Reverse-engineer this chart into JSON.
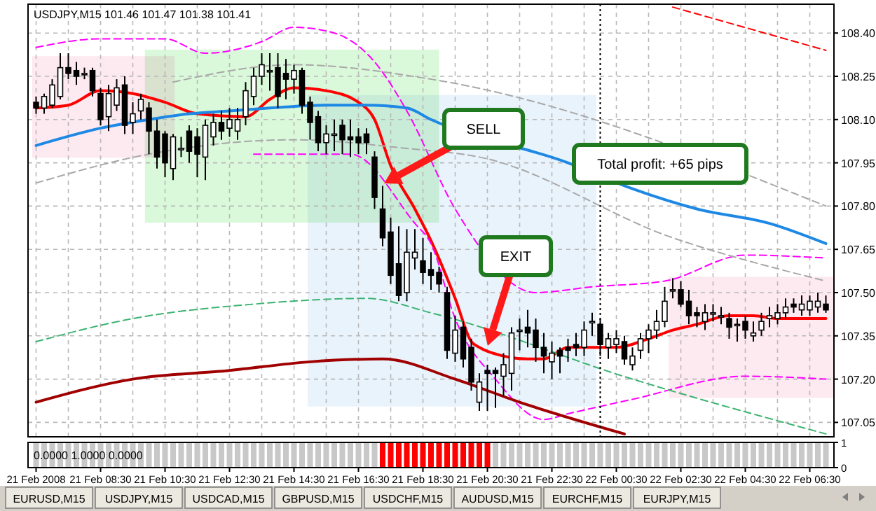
{
  "chart_data": [
    {
      "type": "candlestick",
      "title": "USDJPY,M15 101.46 101.47 101.38 101.41",
      "x": [
        "2008-02-21T06:30",
        "2008-02-21T06:45",
        "2008-02-21T07:00",
        "2008-02-21T07:15",
        "2008-02-21T07:30",
        "2008-02-21T07:45",
        "2008-02-21T08:00",
        "2008-02-21T08:15",
        "2008-02-21T08:30",
        "2008-02-21T08:45",
        "2008-02-21T09:00",
        "2008-02-21T09:15",
        "2008-02-21T09:30",
        "2008-02-21T09:45",
        "2008-02-21T10:00",
        "2008-02-21T10:15",
        "2008-02-21T10:30",
        "2008-02-21T10:45",
        "2008-02-21T11:00",
        "2008-02-21T11:15",
        "2008-02-21T11:30",
        "2008-02-21T11:45",
        "2008-02-21T12:00",
        "2008-02-21T12:15",
        "2008-02-21T12:30",
        "2008-02-21T12:45",
        "2008-02-21T13:00",
        "2008-02-21T13:15",
        "2008-02-21T13:30",
        "2008-02-21T13:45",
        "2008-02-21T14:00",
        "2008-02-21T14:15",
        "2008-02-21T14:30",
        "2008-02-21T14:45",
        "2008-02-21T15:00",
        "2008-02-21T15:15",
        "2008-02-21T15:30",
        "2008-02-21T15:45",
        "2008-02-21T16:00",
        "2008-02-21T16:15",
        "2008-02-21T16:30",
        "2008-02-21T16:45",
        "2008-02-21T17:00",
        "2008-02-21T17:15",
        "2008-02-21T17:30",
        "2008-02-21T17:45",
        "2008-02-21T18:00",
        "2008-02-21T18:15",
        "2008-02-21T18:30",
        "2008-02-21T18:45",
        "2008-02-21T19:00",
        "2008-02-21T19:15",
        "2008-02-21T19:30",
        "2008-02-21T19:45",
        "2008-02-21T20:00",
        "2008-02-21T20:15",
        "2008-02-21T20:30",
        "2008-02-21T20:45",
        "2008-02-21T21:00",
        "2008-02-21T21:15",
        "2008-02-21T21:30",
        "2008-02-21T21:45",
        "2008-02-21T22:00",
        "2008-02-21T22:15",
        "2008-02-21T22:30",
        "2008-02-21T22:45",
        "2008-02-21T23:00",
        "2008-02-21T23:15",
        "2008-02-21T23:30",
        "2008-02-21T23:45",
        "2008-02-22T00:00",
        "2008-02-22T00:15",
        "2008-02-22T00:30",
        "2008-02-22T00:45",
        "2008-02-22T01:00",
        "2008-02-22T01:15",
        "2008-02-22T01:30",
        "2008-02-22T01:45",
        "2008-02-22T02:00",
        "2008-02-22T02:15",
        "2008-02-22T02:30",
        "2008-02-22T02:45",
        "2008-02-22T03:00",
        "2008-02-22T03:15",
        "2008-02-22T03:30",
        "2008-02-22T03:45",
        "2008-02-22T04:00",
        "2008-02-22T04:15",
        "2008-02-22T04:30",
        "2008-02-22T04:45",
        "2008-02-22T05:00",
        "2008-02-22T05:15",
        "2008-02-22T05:30",
        "2008-02-22T05:45",
        "2008-02-22T06:00",
        "2008-02-22T06:15",
        "2008-02-22T06:30",
        "2008-02-22T06:45",
        "2008-02-22T07:00"
      ],
      "ohlc": [
        [
          108.16,
          108.18,
          108.12,
          108.14
        ],
        [
          108.14,
          108.19,
          108.12,
          108.18
        ],
        [
          108.15,
          108.24,
          108.14,
          108.22
        ],
        [
          108.18,
          108.33,
          108.17,
          108.28
        ],
        [
          108.28,
          108.33,
          108.24,
          108.26
        ],
        [
          108.27,
          108.3,
          108.22,
          108.25
        ],
        [
          108.26,
          108.28,
          108.24,
          108.26
        ],
        [
          108.27,
          108.28,
          108.18,
          108.2
        ],
        [
          108.19,
          108.21,
          108.08,
          108.1
        ],
        [
          108.11,
          108.22,
          108.06,
          108.19
        ],
        [
          108.15,
          108.24,
          108.13,
          108.21
        ],
        [
          108.22,
          108.25,
          108.05,
          108.08
        ],
        [
          108.09,
          108.16,
          108.05,
          108.12
        ],
        [
          108.13,
          108.19,
          108.1,
          108.17
        ],
        [
          108.14,
          108.16,
          107.98,
          108.06
        ],
        [
          108.06,
          108.1,
          107.93,
          107.97
        ],
        [
          108.05,
          108.06,
          107.9,
          107.95
        ],
        [
          107.93,
          108.05,
          107.89,
          108.04
        ],
        [
          108.0,
          108.04,
          107.97,
          108.0
        ],
        [
          108.06,
          108.08,
          107.95,
          107.99
        ],
        [
          108.04,
          108.07,
          107.9,
          107.98
        ],
        [
          107.97,
          108.1,
          107.89,
          108.08
        ],
        [
          108.04,
          108.12,
          108.01,
          108.09
        ],
        [
          108.09,
          108.13,
          108.03,
          108.06
        ],
        [
          108.07,
          108.14,
          108.04,
          108.1
        ],
        [
          108.06,
          108.14,
          108.03,
          108.1
        ],
        [
          108.11,
          108.23,
          108.08,
          108.2
        ],
        [
          108.18,
          108.28,
          108.15,
          108.25
        ],
        [
          108.25,
          108.33,
          108.22,
          108.29
        ],
        [
          108.27,
          108.33,
          108.2,
          108.27
        ],
        [
          108.28,
          108.33,
          108.14,
          108.18
        ],
        [
          108.26,
          108.31,
          108.17,
          108.24
        ],
        [
          108.24,
          108.29,
          108.19,
          108.27
        ],
        [
          108.27,
          108.28,
          108.12,
          108.15
        ],
        [
          108.16,
          108.18,
          108.03,
          108.09
        ],
        [
          108.11,
          108.13,
          107.99,
          108.02
        ],
        [
          108.02,
          108.08,
          107.98,
          108.05
        ],
        [
          108.05,
          108.1,
          107.99,
          108.05
        ],
        [
          108.08,
          108.1,
          107.98,
          108.03
        ],
        [
          108.04,
          108.1,
          107.97,
          108.03
        ],
        [
          108.04,
          108.07,
          107.98,
          108.02
        ],
        [
          108.05,
          108.07,
          107.98,
          108.02
        ],
        [
          107.97,
          107.99,
          107.79,
          107.83
        ],
        [
          107.79,
          107.87,
          107.66,
          107.69
        ],
        [
          107.71,
          107.76,
          107.53,
          107.56
        ],
        [
          107.6,
          107.73,
          107.47,
          107.49
        ],
        [
          107.5,
          107.72,
          107.47,
          107.64
        ],
        [
          107.62,
          107.72,
          107.58,
          107.64
        ],
        [
          107.61,
          107.69,
          107.53,
          107.57
        ],
        [
          107.58,
          107.64,
          107.51,
          107.56
        ],
        [
          107.57,
          107.59,
          107.5,
          107.53
        ],
        [
          107.5,
          107.52,
          107.27,
          107.3
        ],
        [
          107.29,
          107.42,
          107.26,
          107.37
        ],
        [
          107.38,
          107.4,
          107.24,
          107.27
        ],
        [
          107.31,
          107.34,
          107.16,
          107.19
        ],
        [
          107.12,
          107.22,
          107.09,
          107.19
        ],
        [
          107.23,
          107.25,
          107.09,
          107.22
        ],
        [
          107.23,
          107.24,
          107.1,
          107.22
        ],
        [
          107.21,
          107.29,
          107.14,
          107.25
        ],
        [
          107.22,
          107.38,
          107.16,
          107.36
        ],
        [
          107.37,
          107.41,
          107.3,
          107.37
        ],
        [
          107.38,
          107.44,
          107.31,
          107.36
        ],
        [
          107.37,
          107.41,
          107.26,
          107.31
        ],
        [
          107.31,
          107.36,
          107.22,
          107.28
        ],
        [
          107.26,
          107.33,
          107.2,
          107.29
        ],
        [
          107.3,
          107.31,
          107.22,
          107.28
        ],
        [
          107.31,
          107.34,
          107.26,
          107.3
        ],
        [
          107.32,
          107.36,
          107.28,
          107.31
        ],
        [
          107.31,
          107.4,
          107.28,
          107.37
        ],
        [
          107.4,
          107.43,
          107.35,
          107.4
        ],
        [
          107.39,
          107.41,
          107.28,
          107.32
        ],
        [
          107.31,
          107.36,
          107.27,
          107.34
        ],
        [
          107.32,
          107.37,
          107.29,
          107.34
        ],
        [
          107.33,
          107.35,
          107.25,
          107.27
        ],
        [
          107.25,
          107.31,
          107.23,
          107.28
        ],
        [
          107.3,
          107.36,
          107.27,
          107.34
        ],
        [
          107.34,
          107.39,
          107.29,
          107.37
        ],
        [
          107.37,
          107.44,
          107.34,
          107.4
        ],
        [
          107.4,
          107.52,
          107.38,
          107.47
        ],
        [
          107.51,
          107.55,
          107.48,
          107.51
        ],
        [
          107.51,
          107.54,
          107.45,
          107.46
        ],
        [
          107.47,
          107.51,
          107.39,
          107.42
        ],
        [
          107.43,
          107.45,
          107.38,
          107.42
        ],
        [
          107.4,
          107.46,
          107.37,
          107.43
        ],
        [
          107.43,
          107.46,
          107.4,
          107.43
        ],
        [
          107.42,
          107.45,
          107.39,
          107.42
        ],
        [
          107.41,
          107.43,
          107.34,
          107.38
        ],
        [
          107.39,
          107.41,
          107.33,
          107.39
        ],
        [
          107.4,
          107.42,
          107.34,
          107.37
        ],
        [
          107.35,
          107.4,
          107.33,
          107.36
        ],
        [
          107.37,
          107.43,
          107.35,
          107.4
        ],
        [
          107.41,
          107.45,
          107.38,
          107.42
        ],
        [
          107.41,
          107.46,
          107.39,
          107.43
        ],
        [
          107.43,
          107.48,
          107.41,
          107.45
        ],
        [
          107.46,
          107.48,
          107.43,
          107.45
        ],
        [
          107.44,
          107.49,
          107.42,
          107.46
        ],
        [
          107.44,
          107.49,
          107.42,
          107.47
        ],
        [
          107.45,
          107.5,
          107.43,
          107.47
        ],
        [
          107.46,
          107.49,
          107.43,
          107.44
        ]
      ],
      "series": [
        {
          "type": "line",
          "color": "#ff0000",
          "line_style": "solid",
          "x": [
            "2008-02-21T06:30",
            "2008-02-21T07:30",
            "2008-02-21T08:30",
            "2008-02-21T09:30",
            "2008-02-21T10:30",
            "2008-02-21T11:30",
            "2008-02-21T13:00",
            "2008-02-21T13:45",
            "2008-02-21T14:30",
            "2008-02-21T15:30",
            "2008-02-21T16:30",
            "2008-02-21T17:00",
            "2008-02-21T17:30",
            "2008-02-21T18:15",
            "2008-02-21T18:45",
            "2008-02-21T19:30",
            "2008-02-21T20:00",
            "2008-02-21T20:15",
            "2008-02-21T21:00",
            "2008-02-21T21:45",
            "2008-02-21T22:15",
            "2008-02-21T23:00",
            "2008-02-21T23:45",
            "2008-02-22T00:30",
            "2008-02-22T01:30",
            "2008-02-22T02:15",
            "2008-02-22T03:00",
            "2008-02-22T04:00",
            "2008-02-22T04:45",
            "2008-02-22T05:30",
            "2008-02-22T07:00"
          ],
          "values": [
            108.14,
            108.15,
            108.2,
            108.19,
            108.16,
            108.12,
            108.11,
            108.17,
            108.21,
            108.2,
            108.16,
            108.1,
            107.94,
            107.79,
            107.68,
            107.48,
            107.33,
            107.31,
            107.28,
            107.27,
            107.27,
            107.31,
            107.31,
            107.31,
            107.34,
            107.37,
            107.39,
            107.42,
            107.42,
            107.41,
            107.41
          ]
        },
        {
          "type": "line",
          "color": "#1e88e5",
          "line_style": "solid",
          "x": [
            "2008-02-21T06:30",
            "2008-02-21T08:30",
            "2008-02-21T10:00",
            "2008-02-21T11:15",
            "2008-02-21T12:30",
            "2008-02-21T13:45",
            "2008-02-21T15:30",
            "2008-02-21T16:45",
            "2008-02-21T18:00",
            "2008-02-21T18:45",
            "2008-02-21T23:00",
            "2008-02-22T01:00",
            "2008-02-22T03:00",
            "2008-02-22T05:15",
            "2008-02-22T07:00"
          ],
          "values": [
            108.01,
            108.07,
            108.1,
            108.12,
            108.13,
            108.14,
            108.15,
            108.15,
            108.14,
            108.1,
            107.95,
            107.86,
            107.79,
            107.74,
            107.67
          ]
        },
        {
          "type": "line",
          "color": "#ff00ff",
          "line_style": "dashed",
          "x": [
            "2008-02-21T06:30",
            "2008-02-21T08:30",
            "2008-02-21T10:30",
            "2008-02-21T11:45",
            "2008-02-21T13:30",
            "2008-02-21T14:30",
            "2008-02-21T15:45",
            "2008-02-21T17:00",
            "2008-02-21T18:00",
            "2008-02-21T19:30",
            "2008-02-21T22:00",
            "2008-02-21T23:45",
            "2008-02-22T02:00",
            "2008-02-22T04:30",
            "2008-02-22T07:00"
          ],
          "values": [
            108.35,
            108.38,
            108.38,
            108.33,
            108.37,
            108.42,
            108.4,
            108.3,
            108.13,
            107.79,
            107.5,
            107.52,
            107.54,
            107.63,
            107.62
          ]
        },
        {
          "type": "line",
          "color": "#ff00ff",
          "line_style": "dashed",
          "x": [
            "2008-02-21T13:15",
            "2008-02-21T15:00",
            "2008-02-21T16:15",
            "2008-02-21T18:15",
            "2008-02-21T18:45",
            "2008-02-21T19:30",
            "2008-02-21T20:45",
            "2008-02-21T22:15",
            "2008-02-21T23:00",
            "2008-02-22T01:00",
            "2008-02-22T04:30",
            "2008-02-22T07:00"
          ],
          "values": [
            107.98,
            107.98,
            107.98,
            107.74,
            107.67,
            107.41,
            107.2,
            107.06,
            107.08,
            107.13,
            107.21,
            107.2
          ]
        },
        {
          "type": "line",
          "color": "#a8a8a8",
          "line_style": "dashed",
          "x": [
            "2008-02-21T10:45",
            "2008-02-21T14:30",
            "2008-02-21T18:45",
            "2008-02-22T07:00"
          ],
          "values": [
            108.23,
            108.29,
            108.24,
            107.8
          ]
        },
        {
          "type": "line",
          "color": "#a8a8a8",
          "line_style": "dashed",
          "x": [
            "2008-02-21T06:30",
            "2008-02-21T10:00",
            "2008-02-21T14:30",
            "2008-02-21T18:00",
            "2008-02-21T20:15",
            "2008-02-22T02:15",
            "2008-02-22T07:00"
          ],
          "values": [
            107.88,
            107.98,
            108.03,
            108.0,
            107.97,
            107.69,
            107.54
          ]
        },
        {
          "type": "line",
          "color": "#3cb371",
          "line_style": "dashed",
          "x": [
            "2008-02-21T06:30",
            "2008-02-21T09:30",
            "2008-02-21T13:15",
            "2008-02-21T16:45",
            "2008-02-21T18:45",
            "2008-02-22T01:00",
            "2008-02-22T07:00"
          ],
          "values": [
            107.33,
            107.41,
            107.46,
            107.48,
            107.43,
            107.2,
            107.01
          ]
        },
        {
          "type": "line",
          "color": "#a00000",
          "line_style": "solid",
          "x": [
            "2008-02-21T06:30",
            "2008-02-21T09:30",
            "2008-02-21T12:30",
            "2008-02-21T15:00",
            "2008-02-21T17:15",
            "2008-02-21T19:30",
            "2008-02-21T21:30",
            "2008-02-22T00:45"
          ],
          "values": [
            107.12,
            107.2,
            107.23,
            107.26,
            107.27,
            107.2,
            107.12,
            107.01
          ]
        },
        {
          "type": "line",
          "color": "#ff0000",
          "line_style": "dashed",
          "x": [
            "2008-02-22T02:15",
            "2008-02-22T07:00"
          ],
          "values": [
            108.49,
            108.34
          ]
        }
      ],
      "xlim": [
        "2008-02-21T06:15",
        "2008-02-22T07:15"
      ],
      "xticks": [
        {
          "value": "2008-02-21T06:30",
          "label": null
        },
        {
          "value": "2008-02-21T07:30",
          "label": null
        },
        {
          "value": "2008-02-21T08:30",
          "label": null
        },
        {
          "value": "2008-02-21T09:30",
          "label": null
        },
        {
          "value": "2008-02-21T10:30",
          "label": null
        },
        {
          "value": "2008-02-21T11:30",
          "label": null
        },
        {
          "value": "2008-02-21T12:30",
          "label": null
        },
        {
          "value": "2008-02-21T13:30",
          "label": null
        },
        {
          "value": "2008-02-21T14:30",
          "label": null
        },
        {
          "value": "2008-02-21T15:30",
          "label": null
        },
        {
          "value": "2008-02-21T16:30",
          "label": null
        },
        {
          "value": "2008-02-21T17:30",
          "label": null
        },
        {
          "value": "2008-02-21T18:30",
          "label": null
        },
        {
          "value": "2008-02-21T19:30",
          "label": null
        },
        {
          "value": "2008-02-21T20:30",
          "label": null
        },
        {
          "value": "2008-02-21T21:30",
          "label": null
        },
        {
          "value": "2008-02-21T22:30",
          "label": null
        },
        {
          "value": "2008-02-21T23:30",
          "label": null
        },
        {
          "value": "2008-02-22T00:30",
          "label": null
        },
        {
          "value": "2008-02-22T01:30",
          "label": null
        },
        {
          "value": "2008-02-22T02:30",
          "label": null
        },
        {
          "value": "2008-02-22T03:30",
          "label": null
        },
        {
          "value": "2008-02-22T04:30",
          "label": null
        },
        {
          "value": "2008-02-22T05:30",
          "label": null
        },
        {
          "value": "2008-02-22T06:30",
          "label": null
        }
      ],
      "ylim": [
        107.0,
        108.5
      ],
      "yticks": [
        107.05,
        {
          "value": 107.2,
          "label": "107.20"
        },
        107.35,
        {
          "value": 107.5,
          "label": "107.50"
        },
        107.65,
        {
          "value": 107.8,
          "label": "107.80"
        },
        107.95,
        {
          "value": 108.1,
          "label": "108.10"
        },
        108.25,
        {
          "value": 108.4,
          "label": "108.40"
        }
      ],
      "grid": true,
      "tick_labels": "y",
      "ref_lines": [
        {
          "axis": "x",
          "value": "2008-02-22T00:00",
          "color": "#000000",
          "line_style": "dotted"
        }
      ],
      "annotations": [
        "SELL",
        "EXIT",
        "Total profit: +65 pips"
      ]
    },
    {
      "type": "bar",
      "title": "0.0000 1.0000 0.0000",
      "x": [
        "2008-02-21T06:30",
        "2008-02-21T06:45",
        "2008-02-21T07:00",
        "2008-02-21T07:15",
        "2008-02-21T07:30",
        "2008-02-21T07:45",
        "2008-02-21T08:00",
        "2008-02-21T08:15",
        "2008-02-21T08:30",
        "2008-02-21T08:45",
        "2008-02-21T09:00",
        "2008-02-21T09:15",
        "2008-02-21T09:30",
        "2008-02-21T09:45",
        "2008-02-21T10:00",
        "2008-02-21T10:15",
        "2008-02-21T10:30",
        "2008-02-21T10:45",
        "2008-02-21T11:00",
        "2008-02-21T11:15",
        "2008-02-21T11:30",
        "2008-02-21T11:45",
        "2008-02-21T12:00",
        "2008-02-21T12:15",
        "2008-02-21T12:30",
        "2008-02-21T12:45",
        "2008-02-21T13:00",
        "2008-02-21T13:15",
        "2008-02-21T13:30",
        "2008-02-21T13:45",
        "2008-02-21T14:00",
        "2008-02-21T14:15",
        "2008-02-21T14:30",
        "2008-02-21T14:45",
        "2008-02-21T15:00",
        "2008-02-21T15:15",
        "2008-02-21T15:30",
        "2008-02-21T15:45",
        "2008-02-21T16:00",
        "2008-02-21T16:15",
        "2008-02-21T16:30",
        "2008-02-21T16:45",
        "2008-02-21T17:00",
        "2008-02-21T17:15",
        "2008-02-21T17:30",
        "2008-02-21T17:45",
        "2008-02-21T18:00",
        "2008-02-21T18:15",
        "2008-02-21T18:30",
        "2008-02-21T18:45",
        "2008-02-21T19:00",
        "2008-02-21T19:15",
        "2008-02-21T19:30",
        "2008-02-21T19:45",
        "2008-02-21T20:00",
        "2008-02-21T20:15",
        "2008-02-21T20:30",
        "2008-02-21T20:45",
        "2008-02-21T21:00",
        "2008-02-21T21:15",
        "2008-02-21T21:30",
        "2008-02-21T21:45",
        "2008-02-21T22:00",
        "2008-02-21T22:15",
        "2008-02-21T22:30",
        "2008-02-21T22:45",
        "2008-02-21T23:00",
        "2008-02-21T23:15",
        "2008-02-21T23:30",
        "2008-02-21T23:45",
        "2008-02-22T00:00",
        "2008-02-22T00:15",
        "2008-02-22T00:30",
        "2008-02-22T00:45",
        "2008-02-22T01:00",
        "2008-02-22T01:15",
        "2008-02-22T01:30",
        "2008-02-22T01:45",
        "2008-02-22T02:00",
        "2008-02-22T02:15",
        "2008-02-22T02:30",
        "2008-02-22T02:45",
        "2008-02-22T03:00",
        "2008-02-22T03:15",
        "2008-02-22T03:30",
        "2008-02-22T03:45",
        "2008-02-22T04:00",
        "2008-02-22T04:15",
        "2008-02-22T04:30",
        "2008-02-22T04:45",
        "2008-02-22T05:00",
        "2008-02-22T05:15",
        "2008-02-22T05:30",
        "2008-02-22T05:45",
        "2008-02-22T06:00",
        "2008-02-22T06:15",
        "2008-02-22T06:30",
        "2008-02-22T06:45",
        "2008-02-22T07:00"
      ],
      "values": [
        1,
        1,
        1,
        1,
        1,
        1,
        1,
        1,
        1,
        1,
        1,
        1,
        1,
        1,
        1,
        1,
        1,
        1,
        1,
        1,
        1,
        1,
        1,
        1,
        1,
        1,
        1,
        1,
        1,
        1,
        1,
        1,
        1,
        1,
        1,
        1,
        1,
        1,
        1,
        1,
        1,
        1,
        1,
        1,
        1,
        1,
        1,
        1,
        1,
        1,
        1,
        1,
        1,
        1,
        1,
        1,
        1,
        1,
        1,
        1,
        1,
        1,
        1,
        1,
        1,
        1,
        1,
        1,
        1,
        1,
        1,
        1,
        1,
        1,
        1,
        1,
        1,
        1,
        1,
        1,
        1,
        1,
        1,
        1,
        1,
        1,
        1,
        1,
        1,
        1,
        1,
        1,
        1,
        1,
        1,
        1,
        1,
        1,
        1
      ],
      "colors": [
        "#c8c8c8",
        "#c8c8c8",
        "#c8c8c8",
        "#c8c8c8",
        "#c8c8c8",
        "#c8c8c8",
        "#c8c8c8",
        "#c8c8c8",
        "#c8c8c8",
        "#c8c8c8",
        "#c8c8c8",
        "#c8c8c8",
        "#c8c8c8",
        "#c8c8c8",
        "#c8c8c8",
        "#c8c8c8",
        "#c8c8c8",
        "#c8c8c8",
        "#c8c8c8",
        "#c8c8c8",
        "#c8c8c8",
        "#c8c8c8",
        "#c8c8c8",
        "#c8c8c8",
        "#c8c8c8",
        "#c8c8c8",
        "#c8c8c8",
        "#c8c8c8",
        "#c8c8c8",
        "#c8c8c8",
        "#c8c8c8",
        "#c8c8c8",
        "#c8c8c8",
        "#c8c8c8",
        "#c8c8c8",
        "#c8c8c8",
        "#c8c8c8",
        "#c8c8c8",
        "#c8c8c8",
        "#c8c8c8",
        "#c8c8c8",
        "#c8c8c8",
        "#c8c8c8",
        "#ff0000",
        "#ff0000",
        "#ff0000",
        "#ff0000",
        "#ff0000",
        "#ff0000",
        "#ff0000",
        "#ff0000",
        "#ff0000",
        "#ff0000",
        "#ff0000",
        "#ff0000",
        "#ff0000",
        "#ff0000",
        "#c8c8c8",
        "#c8c8c8",
        "#c8c8c8",
        "#c8c8c8",
        "#c8c8c8",
        "#c8c8c8",
        "#c8c8c8",
        "#c8c8c8",
        "#c8c8c8",
        "#c8c8c8",
        "#c8c8c8",
        "#c8c8c8",
        "#c8c8c8",
        "#c8c8c8",
        "#c8c8c8",
        "#c8c8c8",
        "#c8c8c8",
        "#c8c8c8",
        "#c8c8c8",
        "#c8c8c8",
        "#c8c8c8",
        "#c8c8c8",
        "#c8c8c8",
        "#c8c8c8",
        "#c8c8c8",
        "#c8c8c8",
        "#c8c8c8",
        "#c8c8c8",
        "#c8c8c8",
        "#c8c8c8",
        "#c8c8c8",
        "#c8c8c8",
        "#c8c8c8",
        "#c8c8c8",
        "#c8c8c8",
        "#c8c8c8",
        "#c8c8c8",
        "#c8c8c8",
        "#c8c8c8",
        "#c8c8c8",
        "#c8c8c8",
        "#c8c8c8"
      ],
      "xlim": [
        "2008-02-21T06:15",
        "2008-02-22T07:15"
      ],
      "xticks": [
        {
          "value": "2008-02-21T06:30",
          "label": "21 Feb 2008"
        },
        {
          "value": "2008-02-21T08:30",
          "label": "21 Feb 08:30"
        },
        {
          "value": "2008-02-21T10:30",
          "label": "21 Feb 10:30"
        },
        {
          "value": "2008-02-21T12:30",
          "label": "21 Feb 12:30"
        },
        {
          "value": "2008-02-21T14:30",
          "label": "21 Feb 14:30"
        },
        {
          "value": "2008-02-21T16:30",
          "label": "21 Feb 16:30"
        },
        {
          "value": "2008-02-21T18:30",
          "label": "21 Feb 18:30"
        },
        {
          "value": "2008-02-21T20:30",
          "label": "21 Feb 20:30"
        },
        {
          "value": "2008-02-21T22:30",
          "label": "21 Feb 22:30"
        },
        {
          "value": "2008-02-22T00:30",
          "label": "22 Feb 00:30"
        },
        {
          "value": "2008-02-22T02:30",
          "label": "22 Feb 02:30"
        },
        {
          "value": "2008-02-22T04:30",
          "label": "22 Feb 04:30"
        },
        {
          "value": "2008-02-22T06:30",
          "label": "22 Feb 06:30"
        }
      ],
      "ylim": [
        0,
        1
      ],
      "yticks": [
        0,
        1
      ],
      "annotations": [
        "EURUSD,M15",
        "USDJPY,M15",
        "USDCAD,M15",
        "GBPUSD,M15",
        "USDCHF,M15",
        "AUDUSD,M15",
        "EURCHF,M15",
        "EURJPY,M15"
      ]
    }
  ]
}
